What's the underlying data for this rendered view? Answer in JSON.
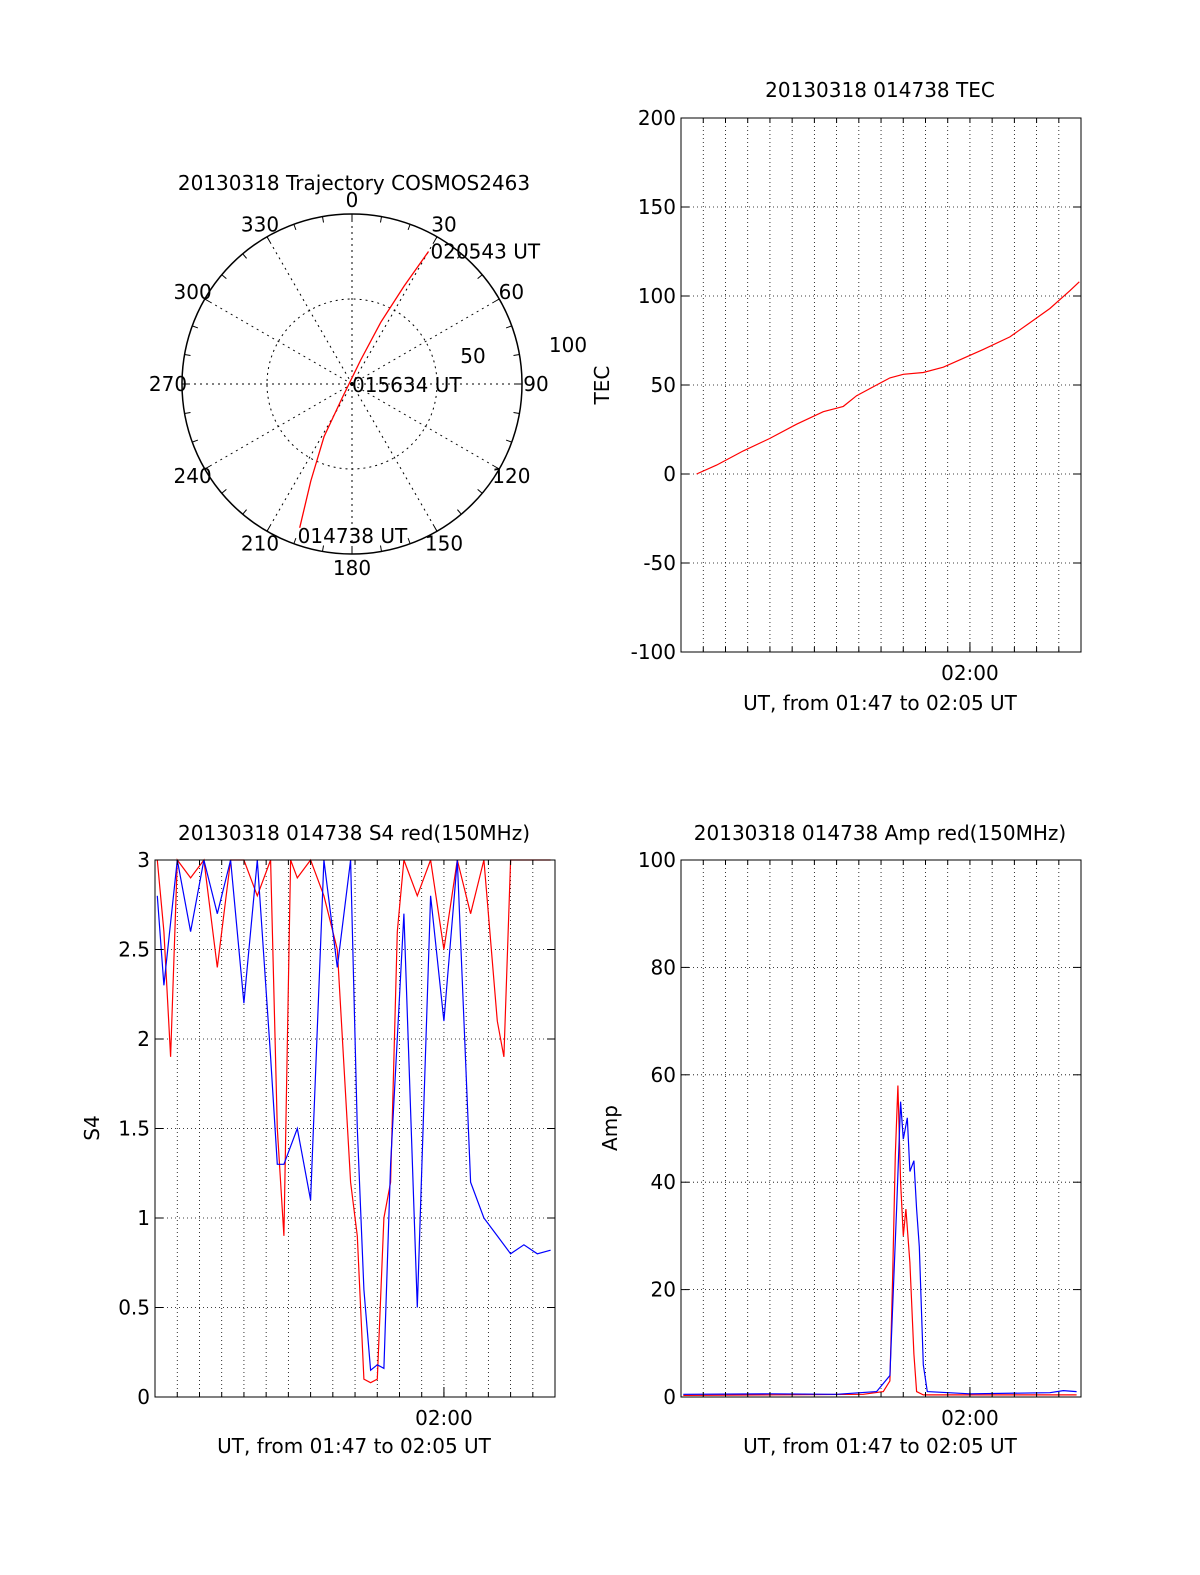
{
  "chart_data": [
    {
      "type": "polar",
      "title": "20130318 Trajectory COSMOS2463",
      "azimuth_labels": [
        "0",
        "30",
        "60",
        "90",
        "120",
        "150",
        "180",
        "210",
        "240",
        "270",
        "300",
        "330"
      ],
      "radial_labels": [
        "50",
        "100"
      ],
      "rmax": 100,
      "trajectory_color": "#ff0000",
      "trajectory": [
        {
          "az": 200,
          "zen": 90
        },
        {
          "az": 203,
          "zen": 62
        },
        {
          "az": 208,
          "zen": 35
        },
        {
          "az": 215,
          "zen": 10
        },
        {
          "az": 20,
          "zen": 15
        },
        {
          "az": 25,
          "zen": 40
        },
        {
          "az": 28,
          "zen": 65
        },
        {
          "az": 30,
          "zen": 90
        }
      ],
      "annotations": [
        {
          "text": "014738 UT",
          "az": 200,
          "zen": 90
        },
        {
          "text": "015634 UT",
          "az": 0,
          "zen": 0
        },
        {
          "text": "020543 UT",
          "az": 30,
          "zen": 90
        }
      ]
    },
    {
      "type": "line",
      "title": "20130318 014738 TEC",
      "xlabel": "UT, from 01:47 to 02:05 UT",
      "ylabel": "TEC",
      "xlim": [
        1.7833,
        2.0833
      ],
      "ylim": [
        -100,
        200
      ],
      "yticks": [
        -100,
        -50,
        0,
        50,
        100,
        150,
        200
      ],
      "xticks": [
        {
          "value": 2.0,
          "label": "02:00"
        }
      ],
      "grid": true,
      "series": [
        {
          "name": "TEC",
          "color": "#ff0000",
          "points": [
            [
              1.795,
              0
            ],
            [
              1.81,
              5
            ],
            [
              1.83,
              13
            ],
            [
              1.85,
              20
            ],
            [
              1.87,
              28
            ],
            [
              1.89,
              35
            ],
            [
              1.905,
              38
            ],
            [
              1.915,
              44
            ],
            [
              1.93,
              50
            ],
            [
              1.94,
              54
            ],
            [
              1.95,
              56
            ],
            [
              1.965,
              57
            ],
            [
              1.98,
              60
            ],
            [
              1.995,
              65
            ],
            [
              2.01,
              70
            ],
            [
              2.03,
              77
            ],
            [
              2.045,
              85
            ],
            [
              2.06,
              93
            ],
            [
              2.075,
              103
            ],
            [
              2.082,
              108
            ]
          ]
        }
      ]
    },
    {
      "type": "line",
      "title": "20130318 014738 S4 red(150MHz)",
      "xlabel": "UT, from 01:47 to 02:05 UT",
      "ylabel": "S4",
      "xlim": [
        1.7833,
        2.0833
      ],
      "ylim": [
        0,
        3
      ],
      "yticks": [
        0,
        0.5,
        1,
        1.5,
        2,
        2.5,
        3
      ],
      "ytick_labels": [
        "0",
        "0.5",
        "1",
        "1.5",
        "2",
        "2.5",
        "3"
      ],
      "xticks": [
        {
          "value": 2.0,
          "label": "02:00"
        }
      ],
      "grid": true,
      "series": [
        {
          "name": "red (150MHz)",
          "color": "#ff0000",
          "points": [
            [
              1.785,
              3
            ],
            [
              1.79,
              2.6
            ],
            [
              1.795,
              1.9
            ],
            [
              1.8,
              3
            ],
            [
              1.81,
              2.9
            ],
            [
              1.82,
              3
            ],
            [
              1.83,
              2.4
            ],
            [
              1.84,
              3
            ],
            [
              1.85,
              3
            ],
            [
              1.86,
              2.8
            ],
            [
              1.87,
              3
            ],
            [
              1.875,
              1.5
            ],
            [
              1.88,
              0.9
            ],
            [
              1.885,
              3
            ],
            [
              1.89,
              2.9
            ],
            [
              1.9,
              3
            ],
            [
              1.91,
              2.8
            ],
            [
              1.92,
              2.5
            ],
            [
              1.93,
              1.2
            ],
            [
              1.935,
              0.9
            ],
            [
              1.94,
              0.1
            ],
            [
              1.945,
              0.08
            ],
            [
              1.95,
              0.1
            ],
            [
              1.955,
              1
            ],
            [
              1.96,
              1.2
            ],
            [
              1.965,
              2.6
            ],
            [
              1.97,
              3
            ],
            [
              1.98,
              2.8
            ],
            [
              1.99,
              3
            ],
            [
              2.0,
              2.5
            ],
            [
              2.01,
              3
            ],
            [
              2.02,
              2.7
            ],
            [
              2.03,
              3
            ],
            [
              2.04,
              2.1
            ],
            [
              2.045,
              1.9
            ],
            [
              2.05,
              3
            ],
            [
              2.06,
              3
            ],
            [
              2.07,
              3
            ],
            [
              2.08,
              3
            ]
          ]
        },
        {
          "name": "blue",
          "color": "#0000ff",
          "points": [
            [
              1.785,
              2.8
            ],
            [
              1.79,
              2.3
            ],
            [
              1.8,
              3
            ],
            [
              1.81,
              2.6
            ],
            [
              1.82,
              3
            ],
            [
              1.83,
              2.7
            ],
            [
              1.84,
              3
            ],
            [
              1.85,
              2.2
            ],
            [
              1.86,
              3
            ],
            [
              1.87,
              1.9
            ],
            [
              1.875,
              1.3
            ],
            [
              1.88,
              1.3
            ],
            [
              1.89,
              1.5
            ],
            [
              1.9,
              1.1
            ],
            [
              1.91,
              3
            ],
            [
              1.92,
              2.4
            ],
            [
              1.93,
              3
            ],
            [
              1.935,
              1.5
            ],
            [
              1.94,
              0.6
            ],
            [
              1.945,
              0.15
            ],
            [
              1.95,
              0.18
            ],
            [
              1.955,
              0.16
            ],
            [
              1.96,
              1.3
            ],
            [
              1.97,
              2.7
            ],
            [
              1.98,
              0.5
            ],
            [
              1.99,
              2.8
            ],
            [
              2.0,
              2.1
            ],
            [
              2.01,
              3
            ],
            [
              2.02,
              1.2
            ],
            [
              2.03,
              1.0
            ],
            [
              2.04,
              0.9
            ],
            [
              2.05,
              0.8
            ],
            [
              2.06,
              0.85
            ],
            [
              2.07,
              0.8
            ],
            [
              2.08,
              0.82
            ]
          ]
        }
      ]
    },
    {
      "type": "line",
      "title": "20130318 014738 Amp red(150MHz)",
      "xlabel": "UT, from 01:47 to 02:05 UT",
      "ylabel": "Amp",
      "xlim": [
        1.7833,
        2.0833
      ],
      "ylim": [
        0,
        100
      ],
      "yticks": [
        0,
        20,
        40,
        60,
        80,
        100
      ],
      "xticks": [
        {
          "value": 2.0,
          "label": "02:00"
        }
      ],
      "grid": true,
      "series": [
        {
          "name": "red (150MHz)",
          "color": "#ff0000",
          "points": [
            [
              1.785,
              0.3
            ],
            [
              1.92,
              0.5
            ],
            [
              1.935,
              1
            ],
            [
              1.94,
              3
            ],
            [
              1.942,
              22
            ],
            [
              1.944,
              45
            ],
            [
              1.946,
              58
            ],
            [
              1.948,
              40
            ],
            [
              1.95,
              30
            ],
            [
              1.952,
              35
            ],
            [
              1.955,
              25
            ],
            [
              1.958,
              8
            ],
            [
              1.96,
              1
            ],
            [
              1.965,
              0.4
            ],
            [
              2.08,
              0.4
            ]
          ]
        },
        {
          "name": "blue",
          "color": "#0000ff",
          "points": [
            [
              1.785,
              0.5
            ],
            [
              1.85,
              0.6
            ],
            [
              1.9,
              0.5
            ],
            [
              1.93,
              1
            ],
            [
              1.94,
              4
            ],
            [
              1.945,
              35
            ],
            [
              1.948,
              55
            ],
            [
              1.95,
              48
            ],
            [
              1.953,
              52
            ],
            [
              1.955,
              42
            ],
            [
              1.958,
              44
            ],
            [
              1.96,
              35
            ],
            [
              1.962,
              28
            ],
            [
              1.965,
              6
            ],
            [
              1.968,
              1
            ],
            [
              2.0,
              0.6
            ],
            [
              2.06,
              0.8
            ],
            [
              2.07,
              1.2
            ],
            [
              2.08,
              1
            ]
          ]
        }
      ]
    }
  ]
}
